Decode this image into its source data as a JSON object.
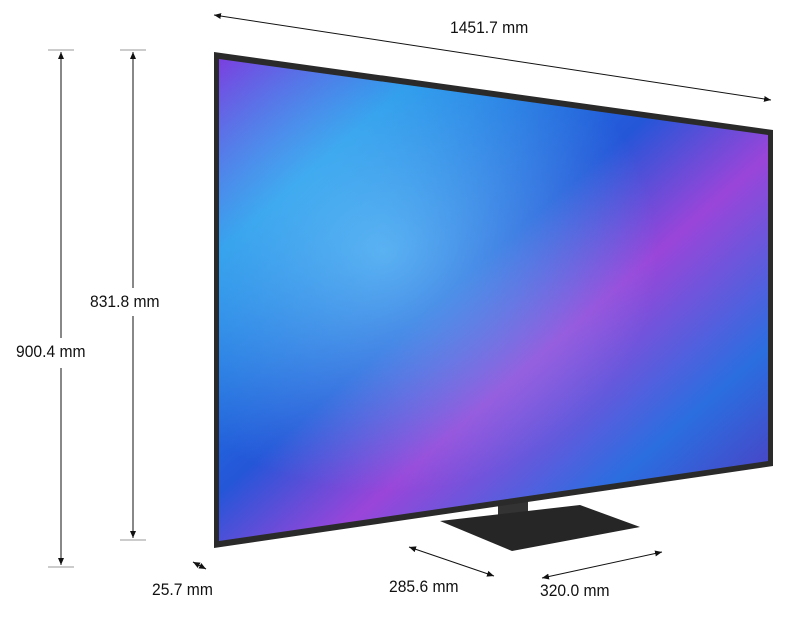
{
  "dimensions": {
    "width": "1451.7 mm",
    "total_height": "900.4 mm",
    "screen_height": "831.8 mm",
    "depth_panel": "25.7 mm",
    "stand_depth": "285.6 mm",
    "stand_width": "320.0 mm"
  },
  "colors": {
    "screen_blue": "#1e6fe0",
    "screen_purple": "#8a3ed8",
    "frame": "#2a2a2a",
    "stand": "#222222"
  }
}
